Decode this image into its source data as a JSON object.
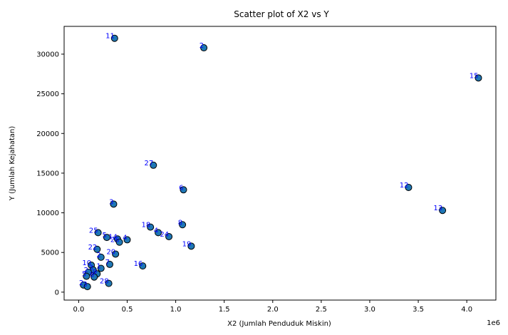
{
  "chart_data": {
    "type": "scatter",
    "title": "Scatter plot of X2 vs Y",
    "xlabel": "X2 (Jumlah Penduduk Miskin)",
    "ylabel": "Y (Jumlah Kejahatan)",
    "x_offset_label": "1e6",
    "xlim": [
      -150000,
      4300000
    ],
    "ylim": [
      -1000,
      33500
    ],
    "x_ticks": [
      0,
      500000,
      1000000,
      1500000,
      2000000,
      2500000,
      3000000,
      3500000,
      4000000
    ],
    "x_tick_labels": [
      "0.0",
      "0.5",
      "1.0",
      "1.5",
      "2.0",
      "2.5",
      "3.0",
      "3.5",
      "4.0"
    ],
    "y_ticks": [
      0,
      5000,
      10000,
      15000,
      20000,
      25000,
      30000
    ],
    "y_tick_labels": [
      "0",
      "5000",
      "10000",
      "15000",
      "20000",
      "25000",
      "30000"
    ],
    "grid": false,
    "marker_color": "#1f77b4",
    "marker_edge_color": "#000000",
    "label_color": "#0000ff",
    "points": [
      {
        "label": "11",
        "x": 370000,
        "y": 32000
      },
      {
        "label": "2",
        "x": 1290000,
        "y": 30800
      },
      {
        "label": "15",
        "x": 4120000,
        "y": 27000
      },
      {
        "label": "27",
        "x": 770000,
        "y": 16000
      },
      {
        "label": "6",
        "x": 1080000,
        "y": 12900
      },
      {
        "label": "12",
        "x": 3400000,
        "y": 13200
      },
      {
        "label": "13",
        "x": 3750000,
        "y": 10300
      },
      {
        "label": "3",
        "x": 360000,
        "y": 11100
      },
      {
        "label": "8",
        "x": 1070000,
        "y": 8500
      },
      {
        "label": "18",
        "x": 740000,
        "y": 8200
      },
      {
        "label": "4",
        "x": 820000,
        "y": 7500
      },
      {
        "label": "24",
        "x": 930000,
        "y": 7000
      },
      {
        "label": "19",
        "x": 1160000,
        "y": 5800
      },
      {
        "label": "25",
        "x": 200000,
        "y": 7500
      },
      {
        "label": "5",
        "x": 290000,
        "y": 6900
      },
      {
        "label": "14",
        "x": 400000,
        "y": 6700
      },
      {
        "label": "26",
        "x": 420000,
        "y": 6300
      },
      {
        "label": "4",
        "x": 500000,
        "y": 6600
      },
      {
        "label": "22",
        "x": 190000,
        "y": 5400
      },
      {
        "label": "20",
        "x": 380000,
        "y": 4800
      },
      {
        "label": "2",
        "x": 230000,
        "y": 4400
      },
      {
        "label": "16",
        "x": 660000,
        "y": 3300
      },
      {
        "label": "7",
        "x": 320000,
        "y": 3500
      },
      {
        "label": "10",
        "x": 130000,
        "y": 3400
      },
      {
        "label": "1",
        "x": 230000,
        "y": 3000
      },
      {
        "label": "3",
        "x": 150000,
        "y": 2800
      },
      {
        "label": "9",
        "x": 190000,
        "y": 2300
      },
      {
        "label": "2",
        "x": 100000,
        "y": 2500
      },
      {
        "label": "8",
        "x": 160000,
        "y": 1900
      },
      {
        "label": "5",
        "x": 80000,
        "y": 2000
      },
      {
        "label": "28",
        "x": 310000,
        "y": 1100
      },
      {
        "label": "2",
        "x": 50000,
        "y": 900
      },
      {
        "label": "3",
        "x": 90000,
        "y": 700
      }
    ]
  }
}
